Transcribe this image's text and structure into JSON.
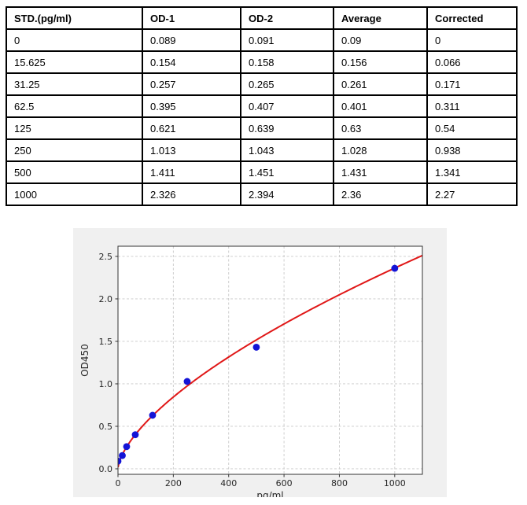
{
  "table": {
    "headers": [
      "STD.(pg/ml)",
      "OD-1",
      "OD-2",
      "Average",
      "Corrected"
    ],
    "rows": [
      [
        "0",
        "0.089",
        "0.091",
        "0.09",
        "0"
      ],
      [
        "15.625",
        "0.154",
        "0.158",
        "0.156",
        "0.066"
      ],
      [
        "31.25",
        "0.257",
        "0.265",
        "0.261",
        "0.171"
      ],
      [
        "62.5",
        "0.395",
        "0.407",
        "0.401",
        "0.311"
      ],
      [
        "125",
        "0.621",
        "0.639",
        "0.63",
        "0.54"
      ],
      [
        "250",
        "1.013",
        "1.043",
        "1.028",
        "0.938"
      ],
      [
        "500",
        "1.411",
        "1.451",
        "1.431",
        "1.341"
      ],
      [
        "1000",
        "2.326",
        "2.394",
        "2.36",
        "2.27"
      ]
    ]
  },
  "chart_data": {
    "type": "scatter",
    "title": "",
    "xlabel": "pg/ml",
    "ylabel": "OD450",
    "xlim": [
      0,
      1100
    ],
    "ylim": [
      -0.065,
      2.62
    ],
    "xticks": [
      0,
      200,
      400,
      600,
      800,
      1000
    ],
    "xtick_labels": [
      "0",
      "200",
      "400",
      "600",
      "800",
      "1000"
    ],
    "yticks": [
      0,
      0.5,
      1,
      1.5,
      2,
      2.5
    ],
    "ytick_labels": [
      "0.0",
      "0.5",
      "1.0",
      "1.5",
      "2.0",
      "2.5"
    ],
    "grid": true,
    "legend_position": "none",
    "points": {
      "x": [
        0,
        15.625,
        31.25,
        62.5,
        125,
        250,
        500,
        1000
      ],
      "y": [
        0.09,
        0.156,
        0.261,
        0.401,
        0.63,
        1.028,
        1.431,
        2.36
      ]
    },
    "fit_curve": {
      "model": "power",
      "a": 0.0286,
      "b": 0.639,
      "x_start": 0.5,
      "x_end": 1100
    },
    "colors": {
      "points": "#1414d6",
      "curve": "#e01717",
      "figure_bg": "#f0f0f0",
      "plot_bg": "#ffffff",
      "grid": "#c9c9c9",
      "spine": "#333333",
      "tick_label": "#262626"
    }
  }
}
